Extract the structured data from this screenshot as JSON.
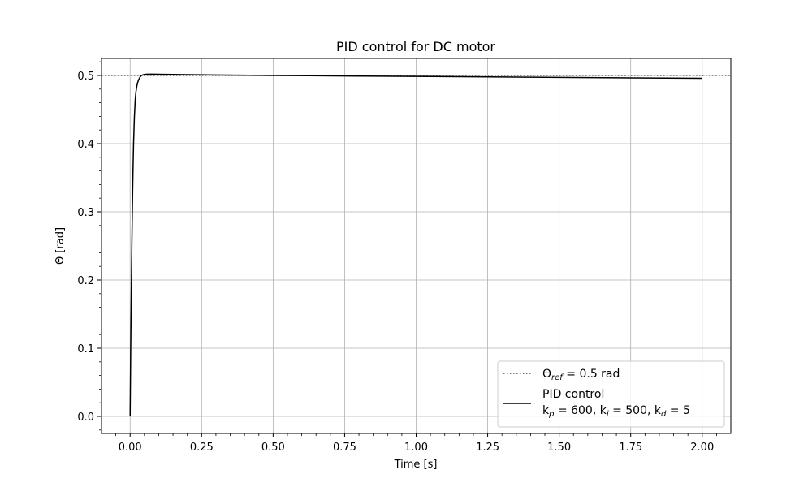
{
  "chart_data": {
    "type": "line",
    "title": "PID control for DC motor",
    "xlabel": "Time [s]",
    "ylabel": "Θ [rad]",
    "xlim": [
      -0.1,
      2.1
    ],
    "ylim": [
      -0.025,
      0.525
    ],
    "x_ticks": [
      0.0,
      0.25,
      0.5,
      0.75,
      1.0,
      1.25,
      1.5,
      1.75,
      2.0
    ],
    "x_tick_labels": [
      "0.00",
      "0.25",
      "0.50",
      "0.75",
      "1.00",
      "1.25",
      "1.50",
      "1.75",
      "2.00"
    ],
    "y_ticks": [
      0.0,
      0.1,
      0.2,
      0.3,
      0.4,
      0.5
    ],
    "y_tick_labels": [
      "0.0",
      "0.1",
      "0.2",
      "0.3",
      "0.4",
      "0.5"
    ],
    "grid": true,
    "legend_position": "lower-right",
    "series": [
      {
        "name": "Θref = 0.5 rad",
        "style": "dotted",
        "color": "#ff0000",
        "x": [
          -0.1,
          2.1
        ],
        "y": [
          0.5,
          0.5
        ]
      },
      {
        "name": "PID control k_p = 600, k_i = 500, k_d = 5",
        "style": "solid",
        "color": "#000000",
        "x": [
          0.0,
          0.002,
          0.004,
          0.006,
          0.008,
          0.01,
          0.012,
          0.015,
          0.018,
          0.02,
          0.025,
          0.03,
          0.035,
          0.04,
          0.045,
          0.05,
          0.06,
          0.07,
          0.08,
          0.1,
          0.15,
          0.2,
          0.3,
          0.5,
          0.75,
          1.0,
          1.25,
          1.5,
          1.75,
          2.0
        ],
        "y": [
          0.0,
          0.1,
          0.18,
          0.25,
          0.31,
          0.36,
          0.4,
          0.44,
          0.465,
          0.475,
          0.488,
          0.494,
          0.498,
          0.5,
          0.501,
          0.5015,
          0.502,
          0.502,
          0.502,
          0.5018,
          0.5015,
          0.5012,
          0.5007,
          0.5,
          0.4993,
          0.4986,
          0.4979,
          0.4972,
          0.4965,
          0.4958
        ]
      }
    ],
    "legend": {
      "ref_main": "Θ",
      "ref_sub": "ref",
      "ref_rest": " = 0.5 rad",
      "pid_line1": "PID control",
      "pid_k1": "k",
      "pid_s1": "p",
      "pid_t1": " = 600, k",
      "pid_s2": "i",
      "pid_t2": " = 500, k",
      "pid_s3": "d",
      "pid_t3": " = 5"
    }
  }
}
